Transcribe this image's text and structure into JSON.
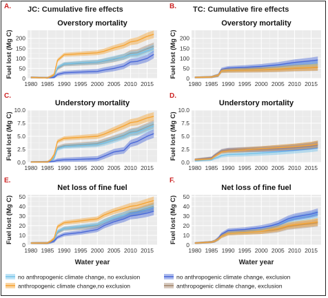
{
  "figure": {
    "col_titles": [
      "JC: Cumulative fire effects",
      "TC: Cumulative fire effects"
    ],
    "xlabel": "Water year",
    "ylabel": "Fuel lost (Mg C)"
  },
  "legend": [
    {
      "name": "no anthropogenic climate change, no exclusion",
      "color": "#74c3ea"
    },
    {
      "name": "anthropogenic climate change,no exclusion",
      "color": "#f5a536"
    },
    {
      "name": "no anthropogenic climate change, exclusion",
      "color": "#4a68d8"
    },
    {
      "name": "anthropogenic climate change, exclusion",
      "color": "#a5876e"
    }
  ],
  "chart_data": [
    {
      "panel": "A.",
      "title": "Overstory mortality",
      "type": "line",
      "xlim": [
        1979,
        2018
      ],
      "ylim": [
        0,
        240
      ],
      "yticks": [
        0,
        50,
        100,
        150,
        200
      ],
      "xticks": [
        1980,
        1985,
        1990,
        1995,
        2000,
        2005,
        2010,
        2015
      ],
      "grid": true,
      "ylabel": "Fuel lost (Mg C)",
      "series": [
        {
          "name": "no anthropogenic climate change, no exclusion",
          "x": [
            1980,
            1985,
            1986,
            1987,
            1988,
            1990,
            1995,
            2000,
            2002,
            2005,
            2008,
            2010,
            2012,
            2015,
            2017
          ],
          "y": [
            5,
            2,
            6,
            10,
            55,
            72,
            78,
            82,
            88,
            98,
            108,
            118,
            120,
            138,
            150
          ]
        },
        {
          "name": "anthropogenic climate change,no exclusion",
          "x": [
            1980,
            1985,
            1986,
            1987,
            1988,
            1990,
            1995,
            2000,
            2002,
            2005,
            2008,
            2010,
            2012,
            2015,
            2017
          ],
          "y": [
            5,
            2,
            10,
            20,
            90,
            118,
            123,
            128,
            135,
            152,
            165,
            182,
            188,
            210,
            220
          ]
        },
        {
          "name": "no anthropogenic climate change, exclusion",
          "x": [
            1980,
            1985,
            1986,
            1987,
            1988,
            1990,
            1995,
            2000,
            2002,
            2005,
            2008,
            2010,
            2012,
            2015,
            2017
          ],
          "y": [
            5,
            2,
            4,
            6,
            20,
            28,
            32,
            35,
            42,
            50,
            62,
            82,
            85,
            100,
            120
          ]
        },
        {
          "name": "anthropogenic climate change, exclusion",
          "x": [
            1980,
            1985,
            1986,
            1987,
            1988,
            1990,
            1995,
            2000,
            2002,
            2005,
            2008,
            2010,
            2012,
            2015,
            2017
          ],
          "y": [
            5,
            2,
            6,
            12,
            50,
            70,
            75,
            80,
            86,
            95,
            108,
            125,
            128,
            148,
            160
          ]
        }
      ]
    },
    {
      "panel": "B.",
      "title": "Overstory mortality",
      "type": "line",
      "xlim": [
        1979,
        2018
      ],
      "ylim": [
        0,
        240
      ],
      "yticks": [
        0,
        50,
        100,
        150,
        200
      ],
      "xticks": [
        1980,
        1985,
        1990,
        1995,
        2000,
        2005,
        2010,
        2015
      ],
      "grid": true,
      "ylabel": "Fuel lost (Mg C)",
      "series": [
        {
          "name": "no anthropogenic climate change, no exclusion",
          "x": [
            1980,
            1985,
            1986,
            1987,
            1988,
            1990,
            1995,
            2000,
            2005,
            2008,
            2010,
            2015,
            2017
          ],
          "y": [
            5,
            7,
            12,
            15,
            40,
            45,
            48,
            52,
            58,
            62,
            65,
            70,
            72
          ]
        },
        {
          "name": "anthropogenic climate change,no exclusion",
          "x": [
            1980,
            1985,
            1986,
            1987,
            1988,
            1990,
            1995,
            2000,
            2005,
            2008,
            2010,
            2015,
            2017
          ],
          "y": [
            5,
            7,
            12,
            15,
            38,
            40,
            42,
            44,
            47,
            50,
            52,
            55,
            57
          ]
        },
        {
          "name": "no anthropogenic climate change, exclusion",
          "x": [
            1980,
            1985,
            1986,
            1987,
            1988,
            1990,
            1995,
            2000,
            2005,
            2008,
            2010,
            2015,
            2017
          ],
          "y": [
            5,
            7,
            12,
            16,
            45,
            52,
            55,
            60,
            68,
            75,
            80,
            88,
            92
          ]
        },
        {
          "name": "anthropogenic climate change, exclusion",
          "x": [
            1980,
            1985,
            1986,
            1987,
            1988,
            1990,
            1995,
            2000,
            2005,
            2008,
            2010,
            2015,
            2017
          ],
          "y": [
            5,
            7,
            11,
            14,
            35,
            38,
            40,
            42,
            45,
            48,
            50,
            53,
            55
          ]
        }
      ]
    },
    {
      "panel": "C.",
      "title": "Understory mortality",
      "type": "line",
      "xlim": [
        1979,
        2018
      ],
      "ylim": [
        0,
        10
      ],
      "yticks": [
        0.0,
        2.5,
        5.0,
        7.5,
        10.0
      ],
      "xticks": [
        1980,
        1985,
        1990,
        1995,
        2000,
        2005,
        2010,
        2015
      ],
      "grid": true,
      "ylabel": "Fuel lost (Mg C)",
      "series": [
        {
          "name": "no anthropogenic climate change, no exclusion",
          "x": [
            1980,
            1985,
            1986,
            1987,
            1988,
            1990,
            1995,
            2000,
            2002,
            2005,
            2008,
            2010,
            2012,
            2015,
            2017
          ],
          "y": [
            0.05,
            0.05,
            0.3,
            0.8,
            2.6,
            3.0,
            3.2,
            3.4,
            3.7,
            4.3,
            5.0,
            5.6,
            5.8,
            6.5,
            7.0
          ]
        },
        {
          "name": "anthropogenic climate change,no exclusion",
          "x": [
            1980,
            1985,
            1986,
            1987,
            1988,
            1990,
            1995,
            2000,
            2002,
            2005,
            2008,
            2010,
            2012,
            2015,
            2017
          ],
          "y": [
            0.05,
            0.05,
            0.5,
            1.5,
            4.0,
            4.6,
            4.8,
            5.0,
            5.4,
            6.2,
            7.0,
            7.6,
            7.8,
            8.5,
            8.8
          ]
        },
        {
          "name": "no anthropogenic climate change, exclusion",
          "x": [
            1980,
            1985,
            1986,
            1987,
            1988,
            1990,
            1995,
            2000,
            2002,
            2005,
            2008,
            2010,
            2012,
            2015,
            2017
          ],
          "y": [
            0.05,
            0.05,
            0.1,
            0.2,
            0.4,
            0.5,
            0.6,
            0.7,
            1.2,
            2.0,
            2.3,
            3.6,
            4.0,
            5.0,
            5.5
          ]
        },
        {
          "name": "anthropogenic climate change, exclusion",
          "x": [
            1980,
            1985,
            1986,
            1987,
            1988,
            1990,
            1995,
            2000,
            2002,
            2005,
            2008,
            2010,
            2012,
            2015,
            2017
          ],
          "y": [
            0.05,
            0.05,
            0.3,
            0.9,
            2.8,
            3.2,
            3.4,
            3.6,
            4.0,
            4.6,
            5.2,
            5.8,
            6.0,
            6.8,
            7.3
          ]
        }
      ]
    },
    {
      "panel": "D.",
      "title": "Understory mortality",
      "type": "line",
      "xlim": [
        1979,
        2018
      ],
      "ylim": [
        0,
        10
      ],
      "yticks": [
        0.0,
        2.5,
        5.0,
        7.5,
        10.0
      ],
      "xticks": [
        1980,
        1985,
        1990,
        1995,
        2000,
        2005,
        2010,
        2015
      ],
      "grid": true,
      "ylabel": "Fuel lost (Mg C)",
      "series": [
        {
          "name": "no anthropogenic climate change, no exclusion",
          "x": [
            1980,
            1985,
            1986,
            1987,
            1988,
            1990,
            1995,
            2000,
            2005,
            2010,
            2015,
            2017
          ],
          "y": [
            0.3,
            0.5,
            0.8,
            1.0,
            1.3,
            1.5,
            1.6,
            1.8,
            2.0,
            2.3,
            2.6,
            2.8
          ]
        },
        {
          "name": "anthropogenic climate change,no exclusion",
          "x": [
            1980,
            1985,
            1986,
            1987,
            1988,
            1990,
            1995,
            2000,
            2005,
            2010,
            2015,
            2017
          ],
          "y": [
            0.5,
            0.7,
            1.2,
            1.6,
            2.0,
            2.2,
            2.4,
            2.6,
            2.8,
            3.0,
            3.3,
            3.5
          ]
        },
        {
          "name": "no anthropogenic climate change, exclusion",
          "x": [
            1980,
            1985,
            1986,
            1987,
            1988,
            1990,
            1995,
            2000,
            2005,
            2010,
            2015,
            2017
          ],
          "y": [
            0.5,
            0.8,
            1.3,
            1.7,
            2.1,
            2.3,
            2.4,
            2.5,
            2.6,
            2.8,
            3.1,
            3.3
          ]
        },
        {
          "name": "anthropogenic climate change, exclusion",
          "x": [
            1980,
            1985,
            1986,
            1987,
            1988,
            1990,
            1995,
            2000,
            2005,
            2010,
            2015,
            2017
          ],
          "y": [
            0.6,
            0.9,
            1.4,
            1.8,
            2.2,
            2.4,
            2.5,
            2.6,
            2.8,
            3.0,
            3.3,
            3.5
          ]
        }
      ]
    },
    {
      "panel": "E.",
      "title": "Net loss of fine fuel",
      "type": "line",
      "xlim": [
        1979,
        2018
      ],
      "ylim": [
        0,
        52
      ],
      "yticks": [
        0,
        10,
        20,
        30,
        40,
        50
      ],
      "xticks": [
        1980,
        1985,
        1990,
        1995,
        2000,
        2005,
        2010,
        2015
      ],
      "grid": true,
      "ylabel": "Fuel lost (Mg C)",
      "series": [
        {
          "name": "no anthropogenic climate change, no exclusion",
          "x": [
            1980,
            1985,
            1986,
            1987,
            1988,
            1990,
            1995,
            2000,
            2002,
            2005,
            2008,
            2010,
            2012,
            2015,
            2017
          ],
          "y": [
            2,
            2,
            3,
            5,
            14,
            17,
            19,
            21,
            24,
            28,
            31,
            33,
            34,
            37,
            39
          ]
        },
        {
          "name": "anthropogenic climate change,no exclusion",
          "x": [
            1980,
            1985,
            1986,
            1987,
            1988,
            1990,
            1995,
            2000,
            2002,
            2005,
            2008,
            2010,
            2012,
            2015,
            2017
          ],
          "y": [
            2,
            2,
            4,
            7,
            19,
            23,
            25,
            27,
            31,
            35,
            38,
            40,
            41,
            44,
            46
          ]
        },
        {
          "name": "no anthropogenic climate change, exclusion",
          "x": [
            1980,
            1985,
            1986,
            1987,
            1988,
            1990,
            1995,
            2000,
            2002,
            2005,
            2008,
            2010,
            2012,
            2015,
            2017
          ],
          "y": [
            2,
            2,
            3,
            4,
            8,
            11,
            13,
            16,
            20,
            24,
            27,
            30,
            31,
            33,
            35
          ]
        },
        {
          "name": "anthropogenic climate change, exclusion",
          "x": [
            1980,
            1985,
            1986,
            1987,
            1988,
            1990,
            1995,
            2000,
            2002,
            2005,
            2008,
            2010,
            2012,
            2015,
            2017
          ],
          "y": [
            2,
            2,
            3,
            5,
            13,
            17,
            18,
            20,
            24,
            28,
            31,
            34,
            35,
            38,
            40
          ]
        }
      ]
    },
    {
      "panel": "F.",
      "title": "Net loss of fine fuel",
      "type": "line",
      "xlim": [
        1979,
        2018
      ],
      "ylim": [
        0,
        52
      ],
      "yticks": [
        0,
        10,
        20,
        30,
        40,
        50
      ],
      "xticks": [
        1980,
        1985,
        1990,
        1995,
        2000,
        2005,
        2010,
        2015
      ],
      "grid": true,
      "ylabel": "Fuel lost (Mg C)",
      "series": [
        {
          "name": "no anthropogenic climate change, no exclusion",
          "x": [
            1980,
            1985,
            1986,
            1987,
            1988,
            1990,
            1995,
            2000,
            2003,
            2005,
            2008,
            2010,
            2015,
            2017
          ],
          "y": [
            2,
            3,
            4,
            6,
            10,
            13,
            14,
            16,
            18,
            20,
            25,
            27,
            30,
            32
          ]
        },
        {
          "name": "anthropogenic climate change,no exclusion",
          "x": [
            1980,
            1985,
            1986,
            1987,
            1988,
            1990,
            1995,
            2000,
            2003,
            2005,
            2008,
            2010,
            2015,
            2017
          ],
          "y": [
            2,
            3,
            4,
            6,
            9,
            12,
            13,
            14,
            16,
            17,
            20,
            21,
            23,
            24
          ]
        },
        {
          "name": "no anthropogenic climate change, exclusion",
          "x": [
            1980,
            1985,
            1986,
            1987,
            1988,
            1990,
            1995,
            2000,
            2003,
            2005,
            2008,
            2010,
            2015,
            2017
          ],
          "y": [
            2,
            3,
            4,
            7,
            11,
            15,
            16,
            18,
            20,
            22,
            27,
            29,
            32,
            34
          ]
        },
        {
          "name": "anthropogenic climate change, exclusion",
          "x": [
            1980,
            1985,
            1986,
            1987,
            1988,
            1990,
            1995,
            2000,
            2003,
            2005,
            2008,
            2010,
            2015,
            2017
          ],
          "y": [
            2,
            3,
            4,
            6,
            9,
            12,
            13,
            14,
            15,
            16,
            19,
            20,
            22,
            23
          ]
        }
      ]
    }
  ]
}
